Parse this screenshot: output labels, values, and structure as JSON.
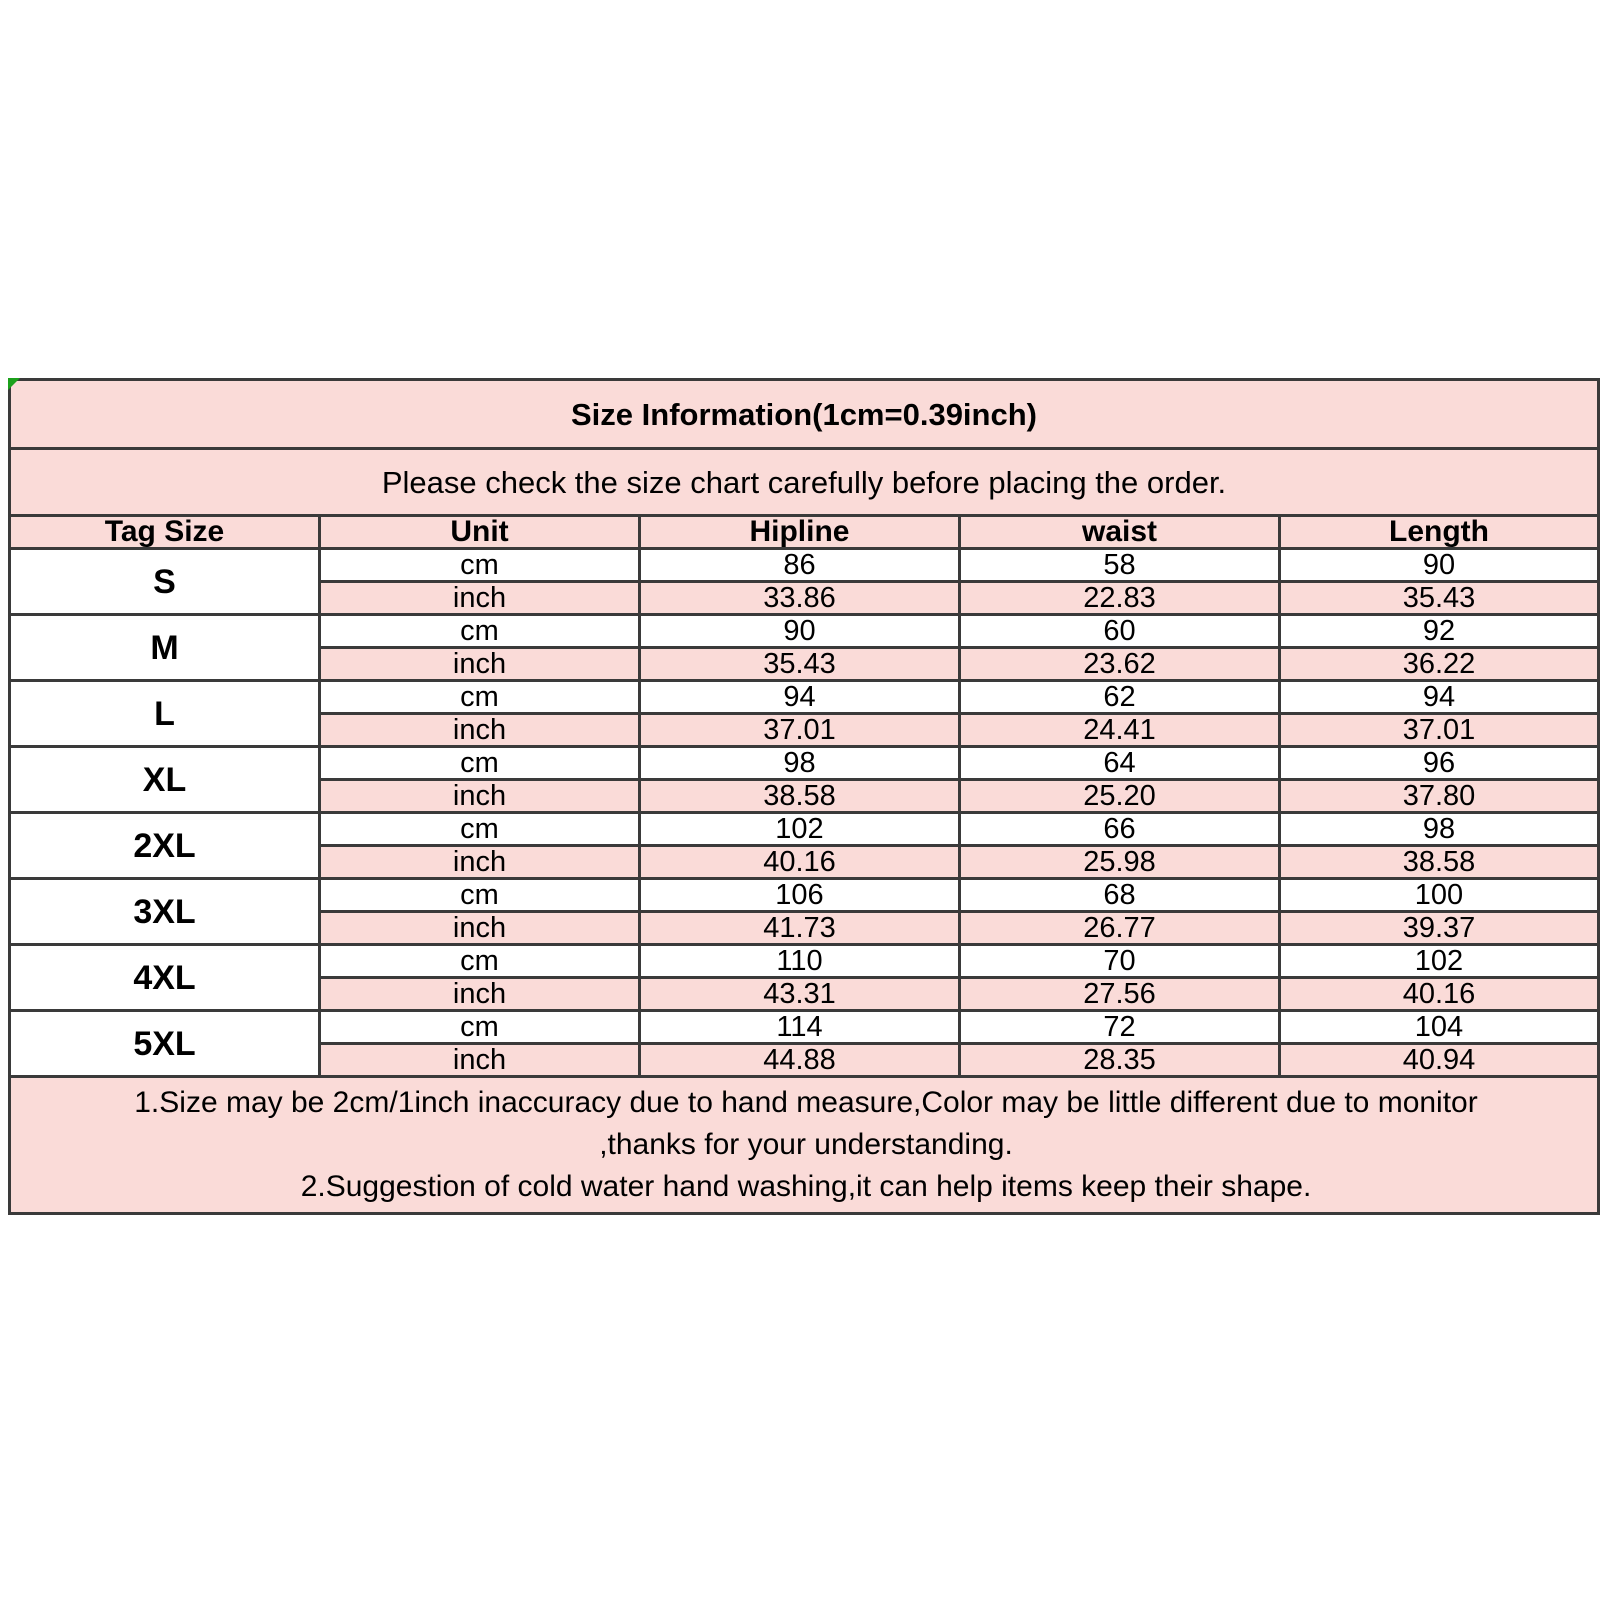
{
  "table": {
    "title": "Size Information(1cm=0.39inch)",
    "subtitle": "Please check the size chart carefully before placing the order.",
    "headers": [
      "Tag Size",
      "Unit",
      "Hipline",
      "waist",
      "Length"
    ],
    "units": [
      "cm",
      "inch"
    ],
    "rows": [
      {
        "size": "S",
        "cm": [
          "86",
          "58",
          "90"
        ],
        "inch": [
          "33.86",
          "22.83",
          "35.43"
        ]
      },
      {
        "size": "M",
        "cm": [
          "90",
          "60",
          "92"
        ],
        "inch": [
          "35.43",
          "23.62",
          "36.22"
        ]
      },
      {
        "size": "L",
        "cm": [
          "94",
          "62",
          "94"
        ],
        "inch": [
          "37.01",
          "24.41",
          "37.01"
        ]
      },
      {
        "size": "XL",
        "cm": [
          "98",
          "64",
          "96"
        ],
        "inch": [
          "38.58",
          "25.20",
          "37.80"
        ]
      },
      {
        "size": "2XL",
        "cm": [
          "102",
          "66",
          "98"
        ],
        "inch": [
          "40.16",
          "25.98",
          "38.58"
        ]
      },
      {
        "size": "3XL",
        "cm": [
          "106",
          "68",
          "100"
        ],
        "inch": [
          "41.73",
          "26.77",
          "39.37"
        ]
      },
      {
        "size": "4XL",
        "cm": [
          "110",
          "70",
          "102"
        ],
        "inch": [
          "43.31",
          "27.56",
          "40.16"
        ]
      },
      {
        "size": "5XL",
        "cm": [
          "114",
          "72",
          "104"
        ],
        "inch": [
          "44.88",
          "28.35",
          "40.94"
        ]
      }
    ],
    "notes": [
      "1.Size may be 2cm/1inch inaccuracy due to hand measure,Color may be little different due to monitor",
      ",thanks for your understanding.",
      "2.Suggestion of cold water hand washing,it can help items keep their shape."
    ],
    "colors": {
      "row_pink": "#FADBD8",
      "border": "#3A3A3A",
      "corner_marker_green": "#1CA11C",
      "text": "#000000"
    }
  }
}
